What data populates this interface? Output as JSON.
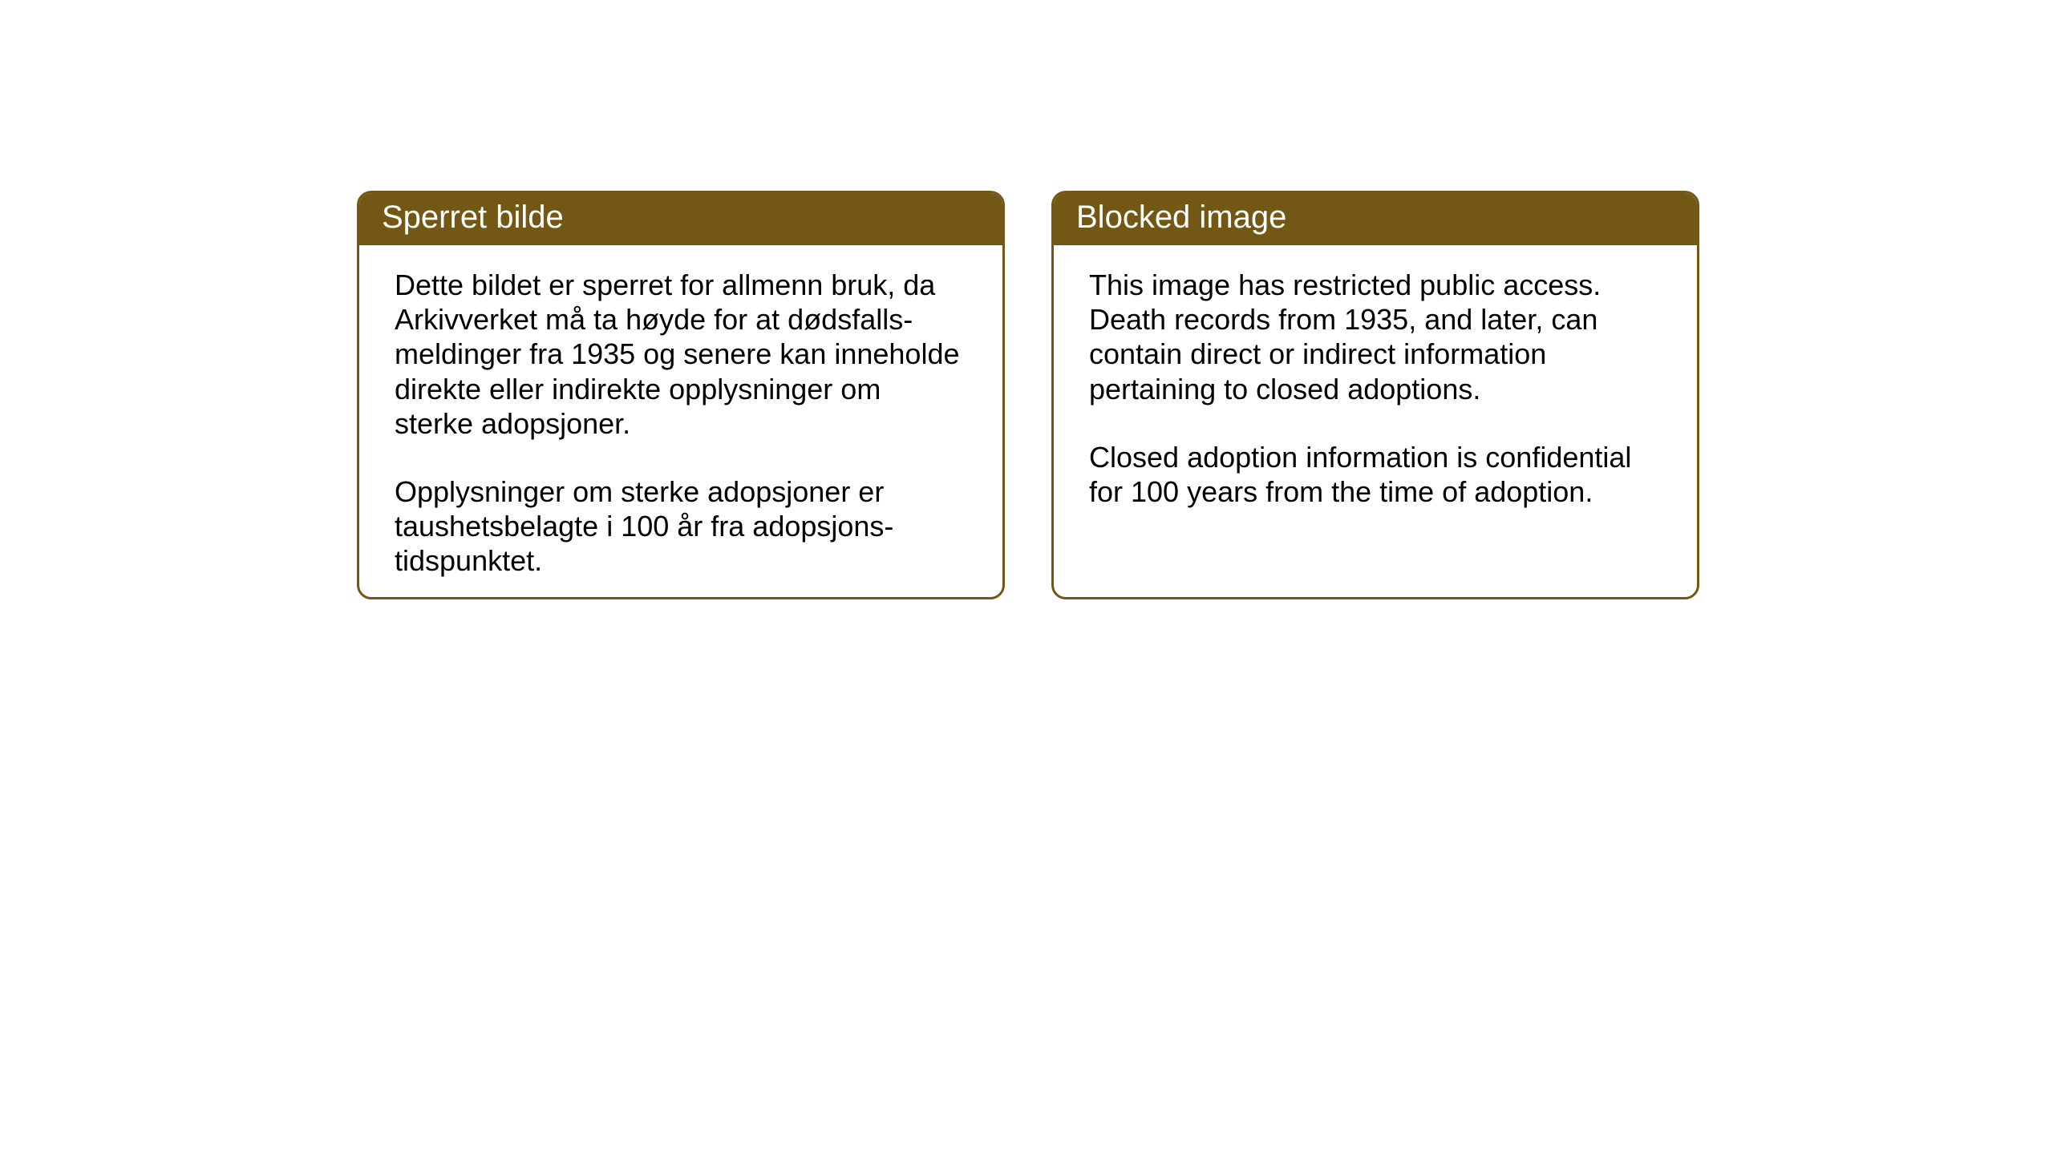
{
  "layout": {
    "background_color": "#ffffff",
    "card_border_color": "#735815",
    "card_header_bg_color": "#735815",
    "card_header_text_color": "#ffffff",
    "card_body_text_color": "#000000",
    "card_border_radius": 18,
    "card_border_width": 3,
    "header_font_size": 40,
    "body_font_size": 36
  },
  "cards": {
    "norwegian": {
      "title": "Sperret bilde",
      "paragraph1": "Dette bildet er sperret for allmenn bruk, da Arkivverket må ta høyde for at dødsfalls-meldinger fra 1935 og senere kan inneholde direkte eller indirekte opplysninger om sterke adopsjoner.",
      "paragraph2": "Opplysninger om sterke adopsjoner er taushetsbelagte i 100 år fra adopsjons-tidspunktet."
    },
    "english": {
      "title": "Blocked image",
      "paragraph1": "This image has restricted public access. Death records from 1935, and later, can contain direct or indirect information pertaining to closed adoptions.",
      "paragraph2": "Closed adoption information is confidential for 100 years from the time of adoption."
    }
  }
}
